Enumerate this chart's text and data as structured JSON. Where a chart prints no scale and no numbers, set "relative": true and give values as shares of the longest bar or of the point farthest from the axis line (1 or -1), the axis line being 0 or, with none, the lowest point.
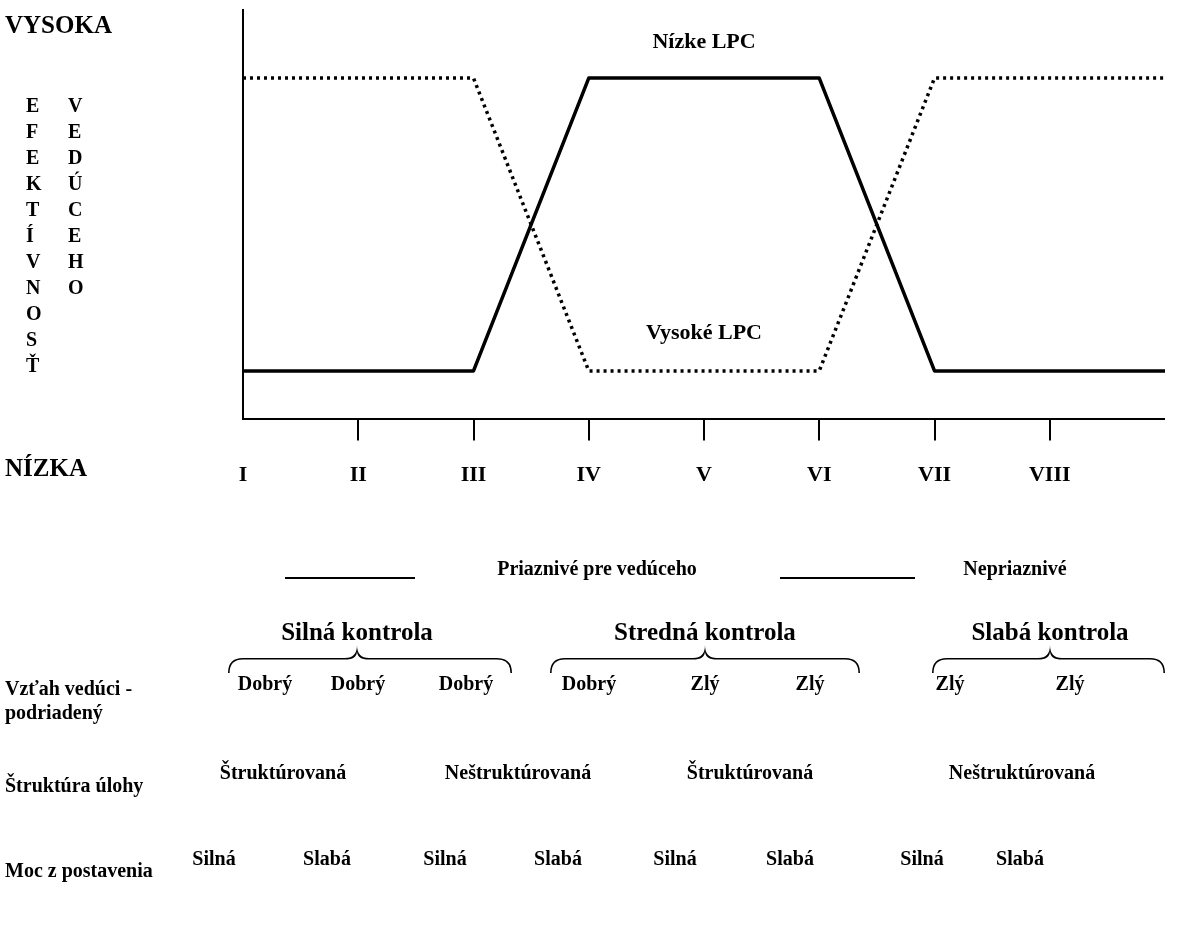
{
  "chart_data": {
    "type": "line",
    "relative": true,
    "ylabel": "EFEKTÍVNOSŤ VEDÚCEHO",
    "legend": false,
    "grid": false,
    "marker": "none",
    "categories": [
      "I",
      "II",
      "III",
      "IV",
      "V",
      "VI",
      "VII",
      "VIII",
      null
    ],
    "series": [
      {
        "name": "Nízke LPC",
        "color": "#000000",
        "line_style": "solid",
        "values": [
          0.14,
          0.14,
          0.14,
          1,
          1,
          1,
          0.14,
          0.14,
          0.14
        ]
      },
      {
        "name": "Vysoké LPC",
        "color": "#000000",
        "line_style": "dotted",
        "values": [
          1,
          1,
          1,
          0.14,
          0.14,
          0.14,
          1,
          1,
          1
        ]
      }
    ],
    "annotations": [
      "VYSOKA",
      "NÍZKA",
      "Priaznivé pre vedúceho",
      "Nepriaznivé",
      "Silná kontrola",
      "Stredná kontrola",
      "Slabá kontrola",
      "Vzťah vedúci - podriadený",
      "Dobrý",
      "Dobrý",
      "Dobrý",
      "Dobrý",
      "Zlý",
      "Zlý",
      "Zlý",
      "Zlý",
      "Štruktúra úlohy",
      "Štruktúrovaná",
      "Neštruktúrovaná",
      "Štruktúrovaná",
      "Neštruktúrovaná",
      "Moc z postavenia",
      "Silná",
      "Slabá",
      "Silná",
      "Slabá",
      "Silná",
      "Slabá",
      "Silná",
      "Slabá"
    ]
  }
}
